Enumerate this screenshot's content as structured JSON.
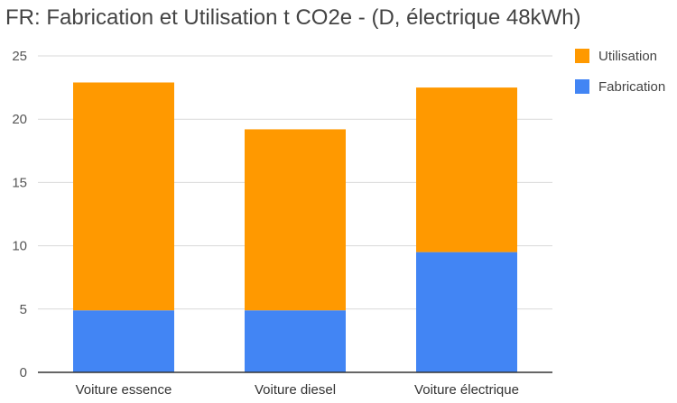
{
  "chart_data": {
    "type": "bar",
    "stacked": true,
    "title": "FR: Fabrication et Utilisation t CO2e - (D, électrique 48kWh)",
    "xlabel": "",
    "ylabel": "",
    "categories": [
      "Voiture essence",
      "Voiture diesel",
      "Voiture électrique"
    ],
    "series": [
      {
        "name": "Fabrication",
        "color": "#4285f4",
        "values": [
          4.9,
          4.9,
          9.5
        ]
      },
      {
        "name": "Utilisation",
        "color": "#ff9900",
        "values": [
          18.0,
          14.3,
          13.0
        ]
      }
    ],
    "ylim": [
      0,
      25
    ],
    "yticks": [
      0,
      5,
      10,
      15,
      20,
      25
    ],
    "grid": true,
    "legend_position": "right"
  }
}
